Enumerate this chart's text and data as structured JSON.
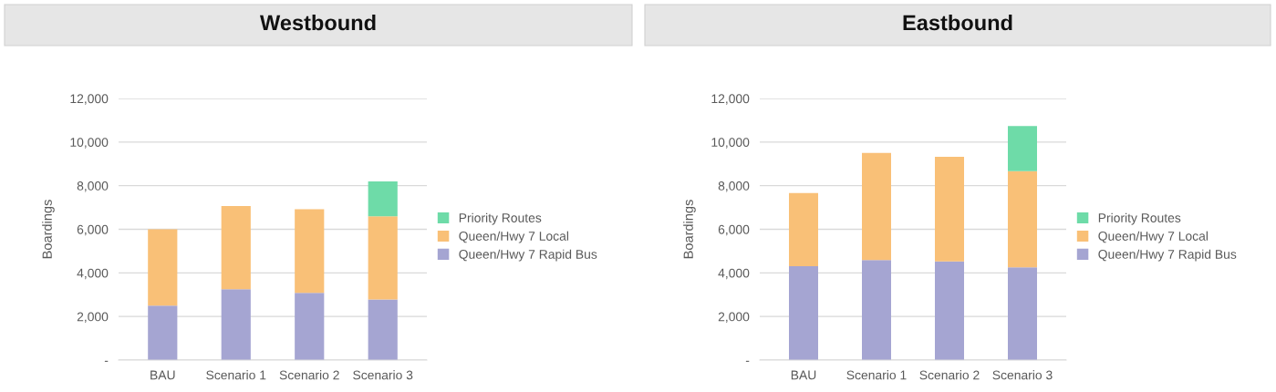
{
  "chart_data": [
    {
      "type": "bar",
      "title": "Westbound",
      "ylabel": "Boardings",
      "stacked": true,
      "grid": "y",
      "legend": "right",
      "categories": [
        "BAU",
        "Scenario 1",
        "Scenario 2",
        "Scenario 3"
      ],
      "ylim": [
        0,
        12000
      ],
      "yticks": [
        {
          "value": 0,
          "label": "-"
        },
        {
          "value": 2000,
          "label": "2,000"
        },
        {
          "value": 4000,
          "label": "4,000"
        },
        {
          "value": 6000,
          "label": "6,000"
        },
        {
          "value": 8000,
          "label": "8,000"
        },
        {
          "value": 10000,
          "label": "10,000"
        },
        {
          "value": 12000,
          "label": "12,000"
        }
      ],
      "series": [
        {
          "name": "Queen/Hwy 7 Rapid Bus",
          "color": "#a5a5d2",
          "values": [
            2500,
            3250,
            3080,
            2780
          ]
        },
        {
          "name": "Queen/Hwy 7 Local",
          "color": "#f9c077",
          "values": [
            3500,
            3820,
            3840,
            3820
          ]
        },
        {
          "name": "Priority Routes",
          "color": "#6edba8",
          "values": [
            null,
            null,
            null,
            1590
          ]
        }
      ]
    },
    {
      "type": "bar",
      "title": "Eastbound",
      "ylabel": "Boardings",
      "stacked": true,
      "grid": "y",
      "legend": "right",
      "categories": [
        "BAU",
        "Scenario 1",
        "Scenario 2",
        "Scenario 3"
      ],
      "ylim": [
        0,
        12000
      ],
      "yticks": [
        {
          "value": 0,
          "label": "-"
        },
        {
          "value": 2000,
          "label": "2,000"
        },
        {
          "value": 4000,
          "label": "4,000"
        },
        {
          "value": 6000,
          "label": "6,000"
        },
        {
          "value": 8000,
          "label": "8,000"
        },
        {
          "value": 10000,
          "label": "10,000"
        },
        {
          "value": 12000,
          "label": "12,000"
        }
      ],
      "series": [
        {
          "name": "Queen/Hwy 7 Rapid Bus",
          "color": "#a5a5d2",
          "values": [
            4310,
            4590,
            4530,
            4250
          ]
        },
        {
          "name": "Queen/Hwy 7 Local",
          "color": "#f9c077",
          "values": [
            3350,
            4910,
            4790,
            4420
          ]
        },
        {
          "name": "Priority Routes",
          "color": "#6edba8",
          "values": [
            null,
            null,
            null,
            2060
          ]
        }
      ]
    }
  ]
}
